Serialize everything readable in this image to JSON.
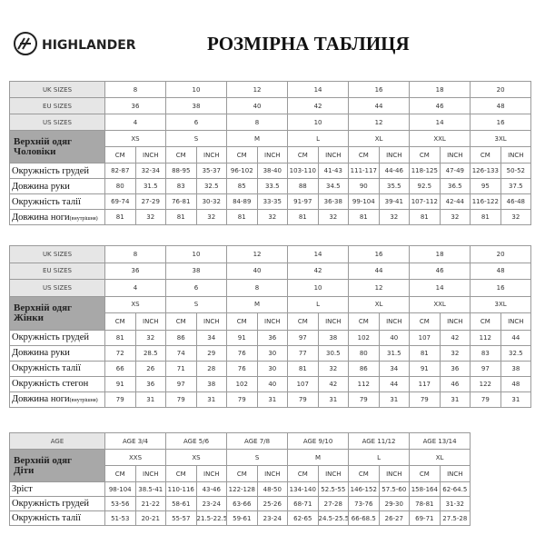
{
  "header": {
    "brand": "HIGHLANDER",
    "title": "РОЗМІРНА ТАБЛИЦЯ"
  },
  "tables": [
    {
      "size_rows": [
        {
          "label": "UK SIZES",
          "values": [
            "8",
            "10",
            "12",
            "14",
            "16",
            "18",
            "20"
          ]
        },
        {
          "label": "EU SIZES",
          "values": [
            "36",
            "38",
            "40",
            "42",
            "44",
            "46",
            "48"
          ]
        },
        {
          "label": "US SIZES",
          "values": [
            "4",
            "6",
            "8",
            "10",
            "12",
            "14",
            "16"
          ]
        }
      ],
      "section": "Верхній одяг",
      "group": "Чоловіки",
      "sizes": [
        "XS",
        "S",
        "M",
        "L",
        "XL",
        "XXL",
        "3XL"
      ],
      "units": [
        "CM",
        "INCH"
      ],
      "rows": [
        {
          "label": "Окружність грудей",
          "values": [
            "82-87",
            "32-34",
            "88-95",
            "35-37",
            "96-102",
            "38-40",
            "103-110",
            "41-43",
            "111-117",
            "44-46",
            "118-125",
            "47-49",
            "126-133",
            "50-52"
          ]
        },
        {
          "label": "Довжина руки",
          "values": [
            "80",
            "31.5",
            "83",
            "32.5",
            "85",
            "33.5",
            "88",
            "34.5",
            "90",
            "35.5",
            "92.5",
            "36.5",
            "95",
            "37.5"
          ]
        },
        {
          "label": "Окружність талії",
          "values": [
            "69-74",
            "27-29",
            "76-81",
            "30-32",
            "84-89",
            "33-35",
            "91-97",
            "36-38",
            "99-104",
            "39-41",
            "107-112",
            "42-44",
            "116-122",
            "46-48"
          ]
        },
        {
          "label": "Довжина ноги",
          "note": "(внутрішня)",
          "values": [
            "81",
            "32",
            "81",
            "32",
            "81",
            "32",
            "81",
            "32",
            "81",
            "32",
            "81",
            "32",
            "81",
            "32"
          ]
        }
      ]
    },
    {
      "size_rows": [
        {
          "label": "UK SIZES",
          "values": [
            "8",
            "10",
            "12",
            "14",
            "16",
            "18",
            "20"
          ]
        },
        {
          "label": "EU SIZES",
          "values": [
            "36",
            "38",
            "40",
            "42",
            "44",
            "46",
            "48"
          ]
        },
        {
          "label": "US SIZES",
          "values": [
            "4",
            "6",
            "8",
            "10",
            "12",
            "14",
            "16"
          ]
        }
      ],
      "section": "Верхній одяг",
      "group": "Жінки",
      "sizes": [
        "XS",
        "S",
        "M",
        "L",
        "XL",
        "XXL",
        "3XL"
      ],
      "units": [
        "CM",
        "INCH"
      ],
      "rows": [
        {
          "label": "Окружність грудей",
          "values": [
            "81",
            "32",
            "86",
            "34",
            "91",
            "36",
            "97",
            "38",
            "102",
            "40",
            "107",
            "42",
            "112",
            "44"
          ]
        },
        {
          "label": "Довжина руки",
          "values": [
            "72",
            "28.5",
            "74",
            "29",
            "76",
            "30",
            "77",
            "30.5",
            "80",
            "31.5",
            "81",
            "32",
            "83",
            "32.5"
          ]
        },
        {
          "label": "Окружність талії",
          "values": [
            "66",
            "26",
            "71",
            "28",
            "76",
            "30",
            "81",
            "32",
            "86",
            "34",
            "91",
            "36",
            "97",
            "38"
          ]
        },
        {
          "label": "Окружність стегон",
          "values": [
            "91",
            "36",
            "97",
            "38",
            "102",
            "40",
            "107",
            "42",
            "112",
            "44",
            "117",
            "46",
            "122",
            "48"
          ]
        },
        {
          "label": "Довжина ноги",
          "note": "(внутрішня)",
          "values": [
            "79",
            "31",
            "79",
            "31",
            "79",
            "31",
            "79",
            "31",
            "79",
            "31",
            "79",
            "31",
            "79",
            "31"
          ]
        }
      ]
    },
    {
      "size_rows": [
        {
          "label": "AGE",
          "values": [
            "AGE 3/4",
            "AGE 5/6",
            "AGE 7/8",
            "AGE 9/10",
            "AGE 11/12",
            "AGE 13/14"
          ]
        }
      ],
      "section": "Верхній одяг",
      "group": "Діти",
      "sizes": [
        "XXS",
        "XS",
        "S",
        "M",
        "L",
        "XL"
      ],
      "units": [
        "CM",
        "INCH"
      ],
      "rows": [
        {
          "label": "Зріст",
          "values": [
            "98-104",
            "38.5-41",
            "110-116",
            "43-46",
            "122-128",
            "48-50",
            "134-140",
            "52.5-55",
            "146-152",
            "57.5-60",
            "158-164",
            "62-64.5"
          ]
        },
        {
          "label": "Окружність грудей",
          "values": [
            "53-56",
            "21-22",
            "58-61",
            "23-24",
            "63-66",
            "25-26",
            "68-71",
            "27-28",
            "73-76",
            "29-30",
            "78-81",
            "31-32"
          ]
        },
        {
          "label": "Окружність талії",
          "values": [
            "51-53",
            "20-21",
            "55-57",
            "21.5-22.5",
            "59-61",
            "23-24",
            "62-65",
            "24.5-25.5",
            "66-68.5",
            "26-27",
            "69-71",
            "27.5-28"
          ]
        }
      ]
    }
  ]
}
